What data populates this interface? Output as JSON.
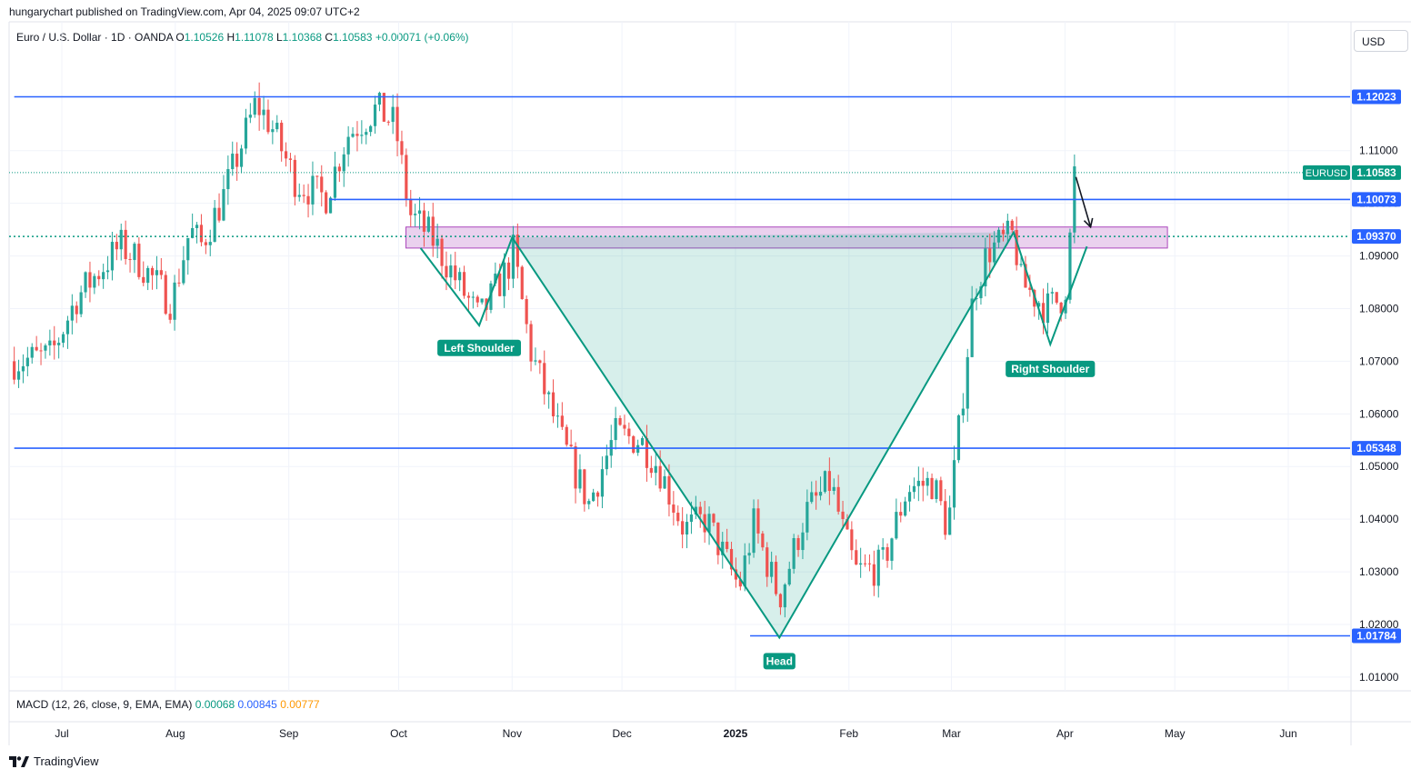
{
  "header": {
    "published": "hungarychart published on TradingView.com, Apr 04, 2025 09:07 UTC+2"
  },
  "legend": {
    "symbol": "Euro / U.S. Dollar · 1D · OANDA",
    "o_label": "O",
    "o": "1.10526",
    "h_label": "H",
    "h": "1.11078",
    "l_label": "L",
    "l": "1.10368",
    "c_label": "C",
    "c": "1.10583",
    "change": "+0.00071 (+0.06%)"
  },
  "currency": "USD",
  "macd": {
    "label": "MACD (12, 26, close, 9, EMA, EMA)",
    "v1": "0.00068",
    "v2": "0.00845",
    "v3": "0.00777",
    "colors": [
      "#089981",
      "#2962ff",
      "#ff9800"
    ]
  },
  "brand": "TradingView",
  "colors": {
    "up": "#26a69a",
    "down": "#ef5350",
    "level": "#2962ff",
    "pattern": "#089981",
    "zone": "#e1bee7"
  },
  "chart_data": {
    "type": "candlestick",
    "ylim": [
      1.005,
      1.132
    ],
    "y_ticks": [
      "1.01000",
      "1.02000",
      "1.03000",
      "1.04000",
      "1.05000",
      "1.06000",
      "1.07000",
      "1.08000",
      "1.09000",
      "1.10000",
      "1.11000"
    ],
    "x_ticks": [
      {
        "label": "Jul",
        "date": "2024-07-01"
      },
      {
        "label": "Aug",
        "date": "2024-08-01"
      },
      {
        "label": "Sep",
        "date": "2024-09-01"
      },
      {
        "label": "Oct",
        "date": "2024-10-01"
      },
      {
        "label": "Nov",
        "date": "2024-11-01"
      },
      {
        "label": "Dec",
        "date": "2024-12-01"
      },
      {
        "label": "2025",
        "date": "2025-01-01",
        "bold": true
      },
      {
        "label": "Feb",
        "date": "2025-02-01"
      },
      {
        "label": "Mar",
        "date": "2025-03-01"
      },
      {
        "label": "Apr",
        "date": "2025-04-01"
      },
      {
        "label": "May",
        "date": "2025-05-01"
      },
      {
        "label": "Jun",
        "date": "2025-06-01"
      }
    ],
    "levels": [
      {
        "label": "1.12023",
        "value": 1.12023,
        "start": "2024-06-18"
      },
      {
        "label": "1.10073",
        "value": 1.10073,
        "start": "2024-09-12"
      },
      {
        "label": "1.05348",
        "value": 1.05348,
        "start": "2024-06-18"
      },
      {
        "label": "1.01784",
        "value": 1.01784,
        "start": "2025-01-05"
      }
    ],
    "zone": {
      "from": 1.0915,
      "to": 1.0955,
      "start": "2024-10-03",
      "end": "2025-04-29"
    },
    "zone_label": "1.09370",
    "zone_value": 1.0937,
    "last_price": {
      "symbol": "EURUSD",
      "label": "1.10583",
      "value": 1.10583
    },
    "pattern": {
      "points": [
        {
          "date": "2024-10-07",
          "value": 1.0915
        },
        {
          "date": "2024-10-23",
          "value": 1.0768
        },
        {
          "date": "2024-11-01",
          "value": 1.0935
        },
        {
          "date": "2025-01-13",
          "value": 1.0175
        },
        {
          "date": "2025-03-18",
          "value": 1.0945
        },
        {
          "date": "2025-03-28",
          "value": 1.0732
        },
        {
          "date": "2025-04-07",
          "value": 1.0918
        }
      ],
      "labels": [
        {
          "text": "Left Shoulder",
          "date": "2024-10-23",
          "value": 1.0765
        },
        {
          "text": "Head",
          "date": "2025-01-13",
          "value": 1.017
        },
        {
          "text": "Right Shoulder",
          "date": "2025-03-28",
          "value": 1.0725
        }
      ]
    },
    "arrow": {
      "from": {
        "date": "2025-04-04",
        "value": 1.105
      },
      "to": {
        "date": "2025-04-08",
        "value": 1.0955
      }
    },
    "anchors": [
      {
        "date": "2024-06-18",
        "value": 1.07
      },
      {
        "date": "2024-06-28",
        "value": 1.071
      },
      {
        "date": "2024-07-05",
        "value": 1.082
      },
      {
        "date": "2024-07-17",
        "value": 1.092
      },
      {
        "date": "2024-07-22",
        "value": 1.089
      },
      {
        "date": "2024-07-31",
        "value": 1.081
      },
      {
        "date": "2024-08-05",
        "value": 1.095
      },
      {
        "date": "2024-08-08",
        "value": 1.092
      },
      {
        "date": "2024-08-14",
        "value": 1.101
      },
      {
        "date": "2024-08-23",
        "value": 1.119
      },
      {
        "date": "2024-08-27",
        "value": 1.115
      },
      {
        "date": "2024-09-03",
        "value": 1.104
      },
      {
        "date": "2024-09-11",
        "value": 1.101
      },
      {
        "date": "2024-09-17",
        "value": 1.113
      },
      {
        "date": "2024-09-25",
        "value": 1.118
      },
      {
        "date": "2024-09-30",
        "value": 1.115
      },
      {
        "date": "2024-10-04",
        "value": 1.098
      },
      {
        "date": "2024-10-10",
        "value": 1.0935
      },
      {
        "date": "2024-10-23",
        "value": 1.078
      },
      {
        "date": "2024-10-31",
        "value": 1.088
      },
      {
        "date": "2024-11-01",
        "value": 1.092
      },
      {
        "date": "2024-11-06",
        "value": 1.072
      },
      {
        "date": "2024-11-15",
        "value": 1.054
      },
      {
        "date": "2024-11-22",
        "value": 1.043
      },
      {
        "date": "2024-11-29",
        "value": 1.056
      },
      {
        "date": "2024-12-06",
        "value": 1.055
      },
      {
        "date": "2024-12-11",
        "value": 1.05
      },
      {
        "date": "2024-12-18",
        "value": 1.038
      },
      {
        "date": "2024-12-24",
        "value": 1.04
      },
      {
        "date": "2025-01-02",
        "value": 1.027
      },
      {
        "date": "2025-01-06",
        "value": 1.039
      },
      {
        "date": "2025-01-13",
        "value": 1.025
      },
      {
        "date": "2025-01-20",
        "value": 1.041
      },
      {
        "date": "2025-01-27",
        "value": 1.047
      },
      {
        "date": "2025-01-31",
        "value": 1.036
      },
      {
        "date": "2025-02-03",
        "value": 1.03
      },
      {
        "date": "2025-02-10",
        "value": 1.031
      },
      {
        "date": "2025-02-17",
        "value": 1.046
      },
      {
        "date": "2025-02-24",
        "value": 1.047
      },
      {
        "date": "2025-02-28",
        "value": 1.038
      },
      {
        "date": "2025-03-04",
        "value": 1.063
      },
      {
        "date": "2025-03-07",
        "value": 1.083
      },
      {
        "date": "2025-03-11",
        "value": 1.091
      },
      {
        "date": "2025-03-18",
        "value": 1.094
      },
      {
        "date": "2025-03-20",
        "value": 1.085
      },
      {
        "date": "2025-03-27",
        "value": 1.08
      },
      {
        "date": "2025-03-31",
        "value": 1.082
      },
      {
        "date": "2025-04-02",
        "value": 1.086
      },
      {
        "date": "2025-04-03",
        "value": 1.105
      },
      {
        "date": "2025-04-04",
        "value": 1.10583
      }
    ]
  }
}
